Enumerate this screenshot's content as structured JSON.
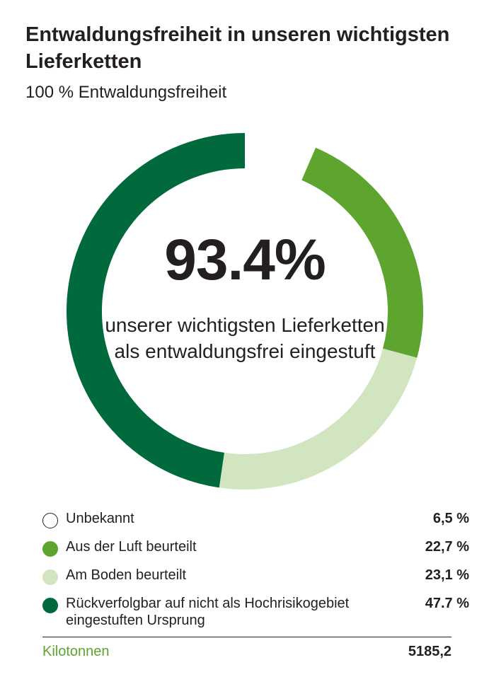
{
  "header": {
    "title": "Entwaldungsfreiheit in unseren wichtigsten Lieferketten",
    "subtitle": "100 % Entwaldungsfreiheit"
  },
  "center": {
    "value": "93.4%",
    "text": "unserer wichtigsten Lieferketten als entwaldungsfrei eingestuft"
  },
  "legend": [
    {
      "label": "Unbekannt",
      "value": "6,5 %",
      "color": "#ffffff",
      "border": "#231f20"
    },
    {
      "label": "Aus der Luft beurteilt",
      "value": "22,7 %",
      "color": "#5da52e",
      "border": "#5da52e"
    },
    {
      "label": "Am Boden beurteilt",
      "value": "23,1 %",
      "color": "#d1e6c0",
      "border": "#d1e6c0"
    },
    {
      "label": "Rückverfolgbar auf nicht als Hochrisikogebiet eingestuften Ursprung",
      "value": "47.7 %",
      "color": "#016a3d",
      "border": "#016a3d"
    }
  ],
  "footer": {
    "label": "Kilotonnen",
    "value": "5185,2"
  },
  "chart_data": {
    "type": "pie",
    "categories": [
      "Unbekannt",
      "Aus der Luft beurteilt",
      "Am Boden beurteilt",
      "Rückverfolgbar auf nicht als Hochrisikogebiet eingestuften Ursprung"
    ],
    "values": [
      6.5,
      22.7,
      23.1,
      47.7
    ],
    "colors": [
      "#ffffff",
      "#5da52e",
      "#d1e6c0",
      "#016a3d"
    ],
    "donut": true,
    "title": "Entwaldungsfreiheit in unseren wichtigsten Lieferketten",
    "subtitle": "100 % Entwaldungsfreiheit"
  }
}
